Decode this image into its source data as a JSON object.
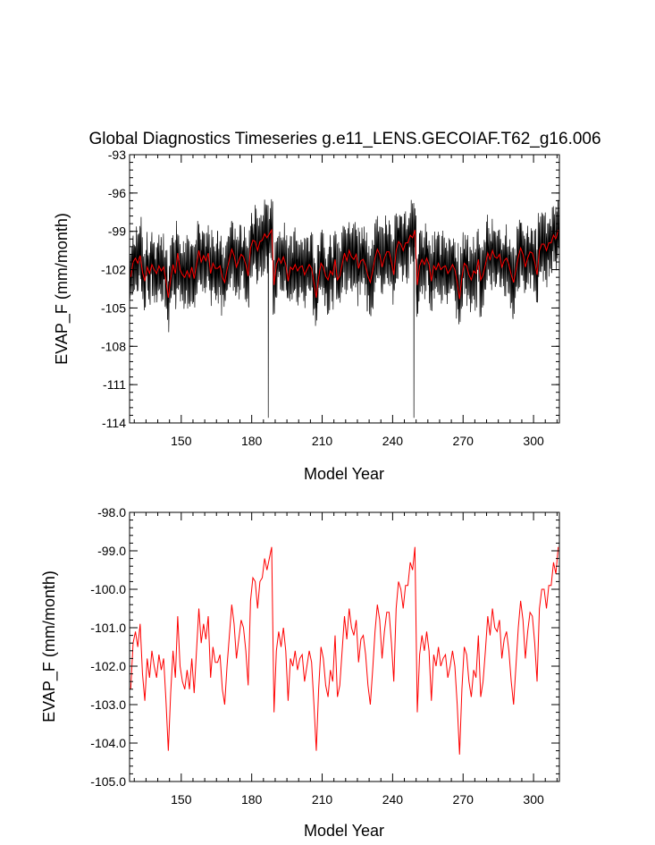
{
  "chart_data": [
    {
      "type": "line",
      "title": "Global Diagnostics Timeseries g.e11_LENS.GECOIAF.T62_g16.006",
      "xlabel": "Model Year",
      "ylabel": "EVAP_F (mm/month)",
      "xlim": [
        128,
        311
      ],
      "ylim": [
        -114,
        -93
      ],
      "xticks": [
        150,
        180,
        210,
        240,
        270,
        300
      ],
      "xtick_labels": [
        "150",
        "180",
        "210",
        "240",
        "270",
        "300"
      ],
      "yticks": [
        -93,
        -96,
        -99,
        -102,
        -105,
        -108,
        -111,
        -114
      ],
      "ytick_labels": [
        "-93",
        "-96",
        "-99",
        "-102",
        "-105",
        "-108",
        "-111",
        "-114"
      ],
      "grid": false,
      "series": [
        {
          "color": "#000000",
          "description_kind": "monthly",
          "x_start": 128,
          "x_step": 0.0833333,
          "annual_mean_source": "series_annual",
          "seasonal_amplitude": 2.6,
          "noise_amplitude": 0.9,
          "spikes": [
            {
              "x": 187.05,
              "y": -113.6
            },
            {
              "x": 249.05,
              "y": -113.6
            }
          ]
        },
        {
          "color": "#ff0000",
          "description_kind": "annual",
          "ref": "series_annual"
        }
      ]
    },
    {
      "type": "line",
      "title": "",
      "xlabel": "Model Year",
      "ylabel": "EVAP_F (mm/month)",
      "xlim": [
        128,
        311
      ],
      "ylim": [
        -105.0,
        -98.0
      ],
      "xticks": [
        150,
        180,
        210,
        240,
        270,
        300
      ],
      "xtick_labels": [
        "150",
        "180",
        "210",
        "240",
        "270",
        "300"
      ],
      "yticks": [
        -98.0,
        -99.0,
        -100.0,
        -101.0,
        -102.0,
        -103.0,
        -104.0,
        -105.0
      ],
      "ytick_labels": [
        "-98.0",
        "-99.0",
        "-100.0",
        "-101.0",
        "-102.0",
        "-103.0",
        "-104.0",
        "-105.0"
      ],
      "grid": false,
      "series": [
        {
          "color": "#ff0000",
          "ref": "series_annual"
        }
      ]
    }
  ],
  "series_annual": {
    "x_start": 128,
    "x_step": 1,
    "values": [
      -102.6,
      -101.4,
      -101.1,
      -101.5,
      -100.9,
      -102.2,
      -102.9,
      -101.8,
      -102.3,
      -101.6,
      -102.0,
      -102.3,
      -101.7,
      -102.1,
      -101.8,
      -102.9,
      -104.2,
      -102.7,
      -101.6,
      -102.3,
      -100.7,
      -102.0,
      -102.4,
      -102.6,
      -102.1,
      -102.6,
      -101.8,
      -102.7,
      -101.6,
      -100.5,
      -101.4,
      -100.9,
      -101.3,
      -100.7,
      -102.3,
      -101.5,
      -101.9,
      -101.9,
      -101.7,
      -102.6,
      -103.0,
      -102.0,
      -101.2,
      -100.4,
      -100.9,
      -101.8,
      -101.3,
      -100.8,
      -101.0,
      -101.6,
      -102.5,
      -100.3,
      -99.7,
      -99.8,
      -100.5,
      -99.8,
      -99.7,
      -99.2,
      -99.5,
      -99.2,
      -98.9,
      -103.2,
      -101.6,
      -101.1,
      -101.5,
      -101.0,
      -101.6,
      -102.9,
      -101.8,
      -102.0,
      -101.6,
      -102.1,
      -101.8,
      -101.7,
      -102.4,
      -102.0,
      -101.6,
      -101.9,
      -103.0,
      -104.2,
      -102.6,
      -101.5,
      -101.8,
      -102.5,
      -102.8,
      -102.1,
      -102.4,
      -101.2,
      -102.8,
      -102.5,
      -101.6,
      -100.7,
      -101.3,
      -100.5,
      -101.0,
      -101.2,
      -100.8,
      -101.9,
      -101.3,
      -101.2,
      -101.7,
      -102.5,
      -103.0,
      -102.1,
      -101.1,
      -100.4,
      -100.8,
      -101.8,
      -101.1,
      -100.6,
      -100.6,
      -101.4,
      -102.4,
      -100.5,
      -99.8,
      -100.0,
      -100.5,
      -99.9,
      -99.9,
      -99.3,
      -99.5,
      -98.9,
      -103.2,
      -101.7,
      -101.2,
      -101.6,
      -101.1,
      -101.6,
      -102.9,
      -101.7,
      -102.0,
      -101.5,
      -102.0,
      -101.8,
      -101.7,
      -102.3,
      -102.0,
      -101.6,
      -102.0,
      -103.0,
      -104.3,
      -102.6,
      -101.5,
      -101.7,
      -102.4,
      -102.8,
      -102.1,
      -102.3,
      -101.2,
      -102.8,
      -102.4,
      -101.6,
      -100.7,
      -101.2,
      -100.5,
      -101.0,
      -101.1,
      -100.8,
      -101.8,
      -101.3,
      -101.1,
      -101.6,
      -102.4,
      -103.0,
      -102.0,
      -101.0,
      -100.3,
      -100.8,
      -101.8,
      -101.1,
      -100.6,
      -100.7,
      -101.4,
      -102.4,
      -100.5,
      -100.0,
      -100.0,
      -100.5,
      -99.9,
      -99.9,
      -99.3,
      -99.6,
      -98.9
    ]
  }
}
